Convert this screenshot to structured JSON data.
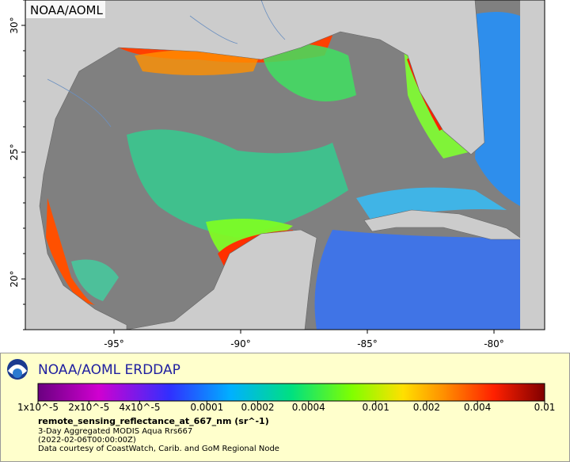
{
  "map": {
    "label": "NOAA/AOML",
    "xlim": [
      -98.5,
      -78
    ],
    "ylim": [
      18,
      31
    ],
    "xticks": [
      {
        "value": -95,
        "label": "-95°"
      },
      {
        "value": -90,
        "label": "-90°"
      },
      {
        "value": -85,
        "label": "-85°"
      },
      {
        "value": -80,
        "label": "-80°"
      }
    ],
    "yticks": [
      {
        "value": 20,
        "label": "20°"
      },
      {
        "value": 25,
        "label": "25°"
      },
      {
        "value": 30,
        "label": "30°"
      }
    ]
  },
  "legend": {
    "title": "NOAA/AOML ERDDAP",
    "scale": "log",
    "range": [
      1e-05,
      0.01
    ],
    "ticks": [
      {
        "value": 1e-05,
        "label": "1x10^-5"
      },
      {
        "value": 2e-05,
        "label": "2x10^-5"
      },
      {
        "value": 4e-05,
        "label": "4x10^-5"
      },
      {
        "value": 0.0001,
        "label": "0.0001"
      },
      {
        "value": 0.0002,
        "label": "0.0002"
      },
      {
        "value": 0.0004,
        "label": "0.0004"
      },
      {
        "value": 0.001,
        "label": "0.001"
      },
      {
        "value": 0.002,
        "label": "0.002"
      },
      {
        "value": 0.004,
        "label": "0.004"
      },
      {
        "value": 0.01,
        "label": "0.01"
      }
    ],
    "variable": "remote_sensing_reflectance_at_667_nm (sr^-1)",
    "lines": [
      "3-Day Aggregated MODIS Aqua Rrs667",
      "(2022-02-06T00:00:00Z)",
      "Data courtesy of CoastWatch, Carib. and GoM Regional Node"
    ]
  }
}
